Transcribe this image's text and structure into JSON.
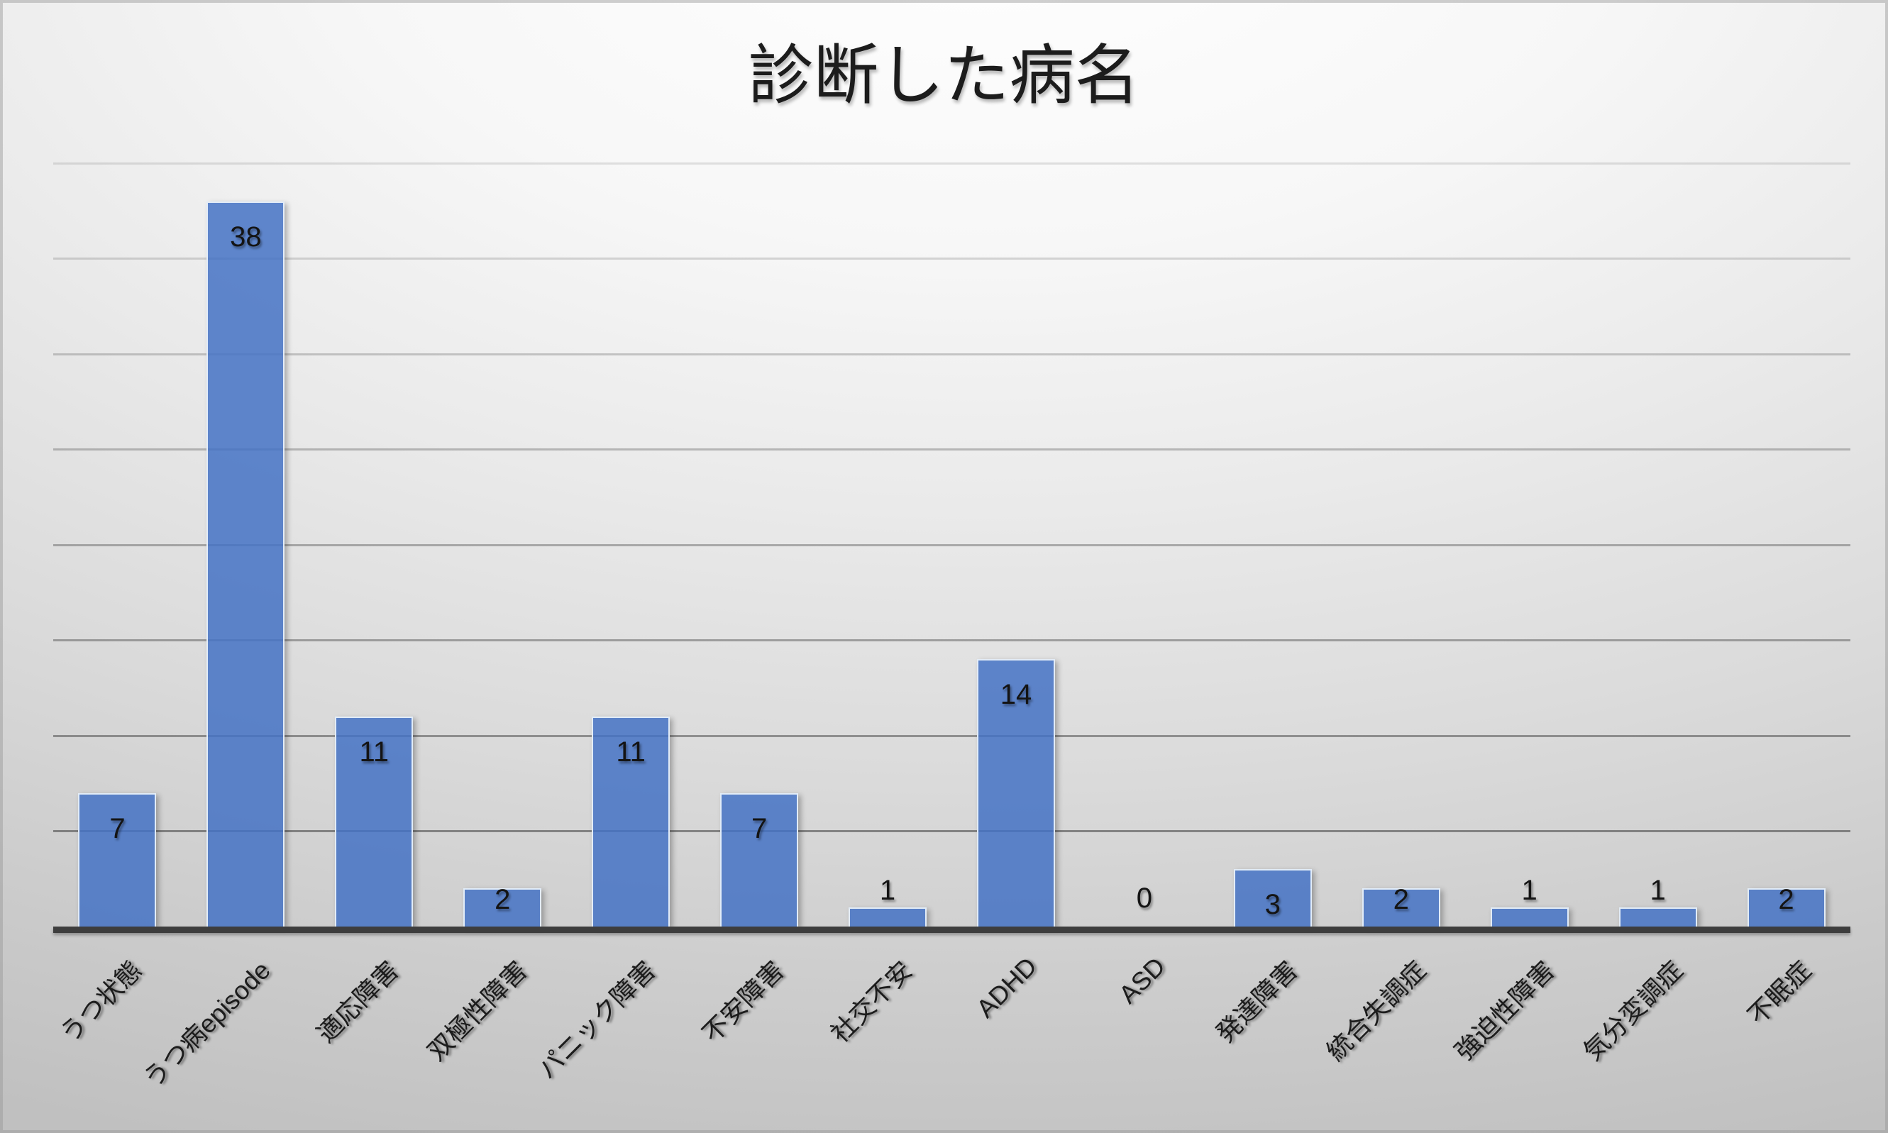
{
  "chart_data": {
    "type": "bar",
    "title": "診断した病名",
    "categories": [
      "うつ状態",
      "うつ病episode",
      "適応障害",
      "双極性障害",
      "パニック障害",
      "不安障害",
      "社交不安",
      "ADHD",
      "ASD",
      "発達障害",
      "統合失調症",
      "強迫性障害",
      "気分変調症",
      "不眠症"
    ],
    "values": [
      7,
      38,
      11,
      2,
      11,
      7,
      1,
      14,
      0,
      3,
      2,
      1,
      1,
      2
    ],
    "xlabel": "",
    "ylabel": "",
    "ylim": [
      0,
      40
    ],
    "gridline_step": 5,
    "grid": true,
    "legend": "none",
    "data_labels": true,
    "x_label_rotation_deg": 45,
    "bar_color": "#4472C4",
    "bar_opacity": 0.85,
    "bar_border_color": "#EAF1FA",
    "axis_line_color": "#3D3D3D",
    "gridline_color": "#303030",
    "label_color": "#141414",
    "title_color": "#1C1C1C",
    "background_top": "#FFFFFF",
    "background_bottom": "#C0C0C0"
  }
}
